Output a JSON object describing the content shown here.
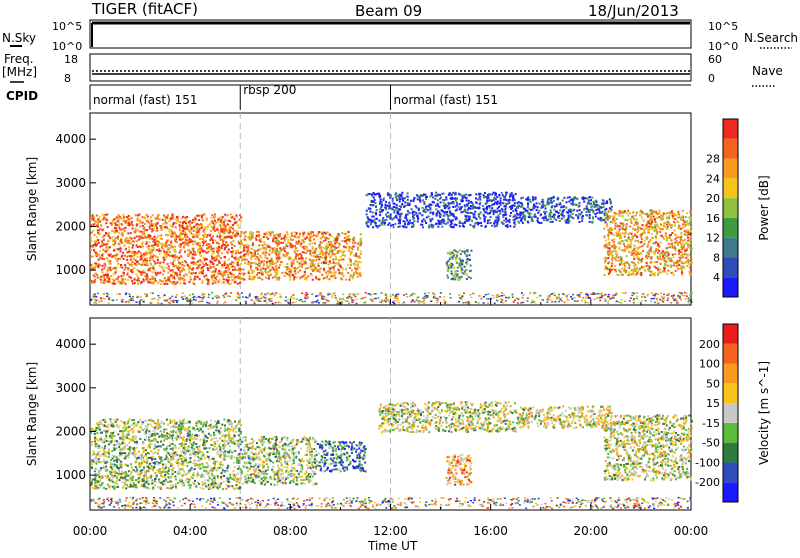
{
  "header": {
    "title": "TIGER (fitACF)",
    "beam": "Beam 09",
    "date": "18/Jun/2013"
  },
  "top_panels": {
    "nsky_label": "N.Sky",
    "nsky_ticks": [
      "10^5",
      "10^0"
    ],
    "nsearch_label": "N.Search",
    "nsearch_ticks": [
      "10^5",
      "10^0"
    ],
    "freq_label": "Freq.",
    "freq_unit": "[MHz]",
    "freq_ticks": [
      "18",
      "8"
    ],
    "nave_label": "Nave",
    "nave_ticks": [
      "60",
      "0"
    ],
    "cpid_label": "CPID",
    "cpid_segments": [
      {
        "label": "normal (fast) 151",
        "start": 0,
        "end": 6
      },
      {
        "label": "rbsp 200",
        "start": 6,
        "end": 12
      },
      {
        "label": "normal (fast) 151",
        "start": 12,
        "end": 24
      }
    ]
  },
  "chart_data": [
    {
      "type": "heatmap",
      "ylabel": "Slant Range [km]",
      "yticks": [
        "1000",
        "2000",
        "3000",
        "4000"
      ],
      "ylim": [
        200,
        4600
      ],
      "xlim": [
        0,
        24
      ],
      "colorbar": {
        "label": "Power [dB]",
        "ticks": [
          "4",
          "8",
          "12",
          "16",
          "20",
          "24",
          "28"
        ],
        "colors": [
          "#1a1aff",
          "#2f4db8",
          "#3e7a8c",
          "#3e9c3e",
          "#8fc040",
          "#f2c51b",
          "#f79a1e",
          "#f3641d",
          "#ed2a1c"
        ]
      },
      "regions": [
        {
          "t0": 0.0,
          "t1": 6.0,
          "r0": 700,
          "r1": 2300,
          "level": 0.8
        },
        {
          "t0": 6.0,
          "t1": 10.8,
          "r0": 800,
          "r1": 1900,
          "level": 0.75
        },
        {
          "t0": 11.0,
          "t1": 17.0,
          "r0": 2000,
          "r1": 2800,
          "level": 0.1
        },
        {
          "t0": 14.2,
          "t1": 15.2,
          "r0": 800,
          "r1": 1500,
          "level": 0.35
        },
        {
          "t0": 17.0,
          "t1": 20.8,
          "r0": 2100,
          "r1": 2700,
          "level": 0.2
        },
        {
          "t0": 20.5,
          "t1": 24.0,
          "r0": 900,
          "r1": 2400,
          "level": 0.7
        }
      ]
    },
    {
      "type": "heatmap",
      "ylabel": "Slant Range [km]",
      "yticks": [
        "1000",
        "2000",
        "3000",
        "4000"
      ],
      "ylim": [
        200,
        4600
      ],
      "xlim": [
        0,
        24
      ],
      "xticks": [
        "00:00",
        "04:00",
        "08:00",
        "12:00",
        "16:00",
        "20:00",
        "00:00"
      ],
      "xlabel": "Time UT",
      "colorbar": {
        "label": "Velocity [m s^-1]",
        "ticks": [
          "200",
          "100",
          "50",
          "15",
          "-15",
          "-50",
          "-100",
          "-200"
        ],
        "colors": [
          "#1a1aff",
          "#2f4db8",
          "#2f7a3e",
          "#5cbc3a",
          "#c8c8c8",
          "#f7c51b",
          "#f79a1e",
          "#f3641d",
          "#ed1c1c"
        ]
      },
      "regions": [
        {
          "t0": 0.0,
          "t1": 6.0,
          "r0": 700,
          "r1": 2300,
          "level": 0.45
        },
        {
          "t0": 6.0,
          "t1": 9.0,
          "r0": 800,
          "r1": 1900,
          "level": 0.45
        },
        {
          "t0": 9.0,
          "t1": 11.0,
          "r0": 1100,
          "r1": 1800,
          "level": 0.25
        },
        {
          "t0": 11.5,
          "t1": 17.0,
          "r0": 2000,
          "r1": 2700,
          "level": 0.5
        },
        {
          "t0": 14.2,
          "t1": 15.2,
          "r0": 800,
          "r1": 1500,
          "level": 0.7
        },
        {
          "t0": 17.0,
          "t1": 20.8,
          "r0": 2100,
          "r1": 2600,
          "level": 0.55
        },
        {
          "t0": 20.5,
          "t1": 24.0,
          "r0": 900,
          "r1": 2400,
          "level": 0.5
        }
      ]
    }
  ]
}
